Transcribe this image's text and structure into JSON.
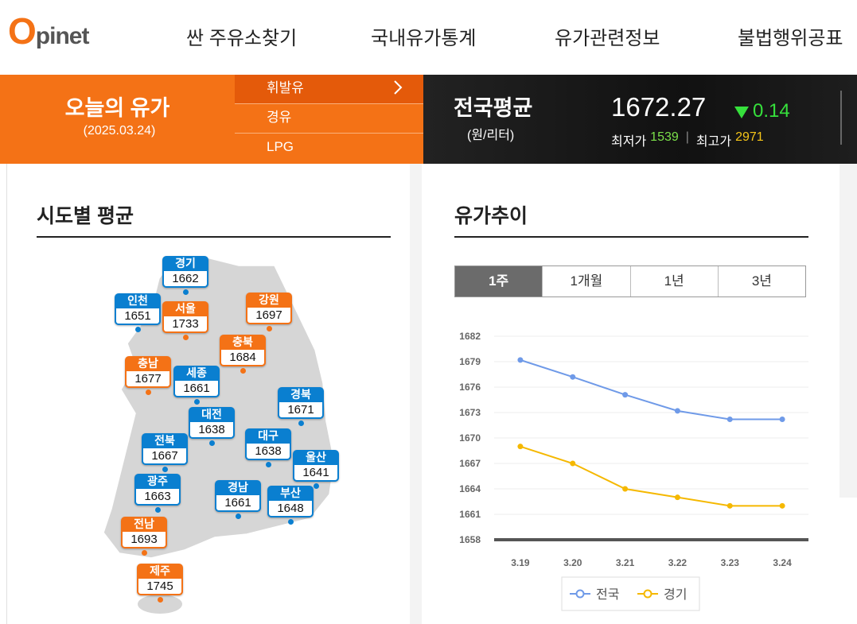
{
  "header": {
    "logo": "Opinet",
    "nav": [
      "싼 주유소찾기",
      "국내유가통계",
      "유가관련정보",
      "불법행위공표"
    ]
  },
  "today": {
    "title": "오늘의 유가",
    "date": "(2025.03.24)",
    "fuel_tabs": [
      "휘발유",
      "경유",
      "LPG"
    ]
  },
  "national": {
    "title": "전국평균",
    "unit": "(원/리터)",
    "price": "1672.27",
    "change": "0.14",
    "min_label": "최저가",
    "min": "1539",
    "max_label": "최고가",
    "max": "2971"
  },
  "regions_section": {
    "title": "시도별 평균",
    "regions": [
      {
        "name": "경기",
        "value": "1662",
        "color": "#0a7fd0"
      },
      {
        "name": "인천",
        "value": "1651",
        "color": "#0a7fd0"
      },
      {
        "name": "서울",
        "value": "1733",
        "color": "#f47216"
      },
      {
        "name": "강원",
        "value": "1697",
        "color": "#f47216"
      },
      {
        "name": "충북",
        "value": "1684",
        "color": "#f47216"
      },
      {
        "name": "충남",
        "value": "1677",
        "color": "#f47216"
      },
      {
        "name": "세종",
        "value": "1661",
        "color": "#0a7fd0"
      },
      {
        "name": "경북",
        "value": "1671",
        "color": "#0a7fd0"
      },
      {
        "name": "대전",
        "value": "1638",
        "color": "#0a7fd0"
      },
      {
        "name": "대구",
        "value": "1638",
        "color": "#0a7fd0"
      },
      {
        "name": "전북",
        "value": "1667",
        "color": "#0a7fd0"
      },
      {
        "name": "울산",
        "value": "1641",
        "color": "#0a7fd0"
      },
      {
        "name": "광주",
        "value": "1663",
        "color": "#0a7fd0"
      },
      {
        "name": "경남",
        "value": "1661",
        "color": "#0a7fd0"
      },
      {
        "name": "부산",
        "value": "1648",
        "color": "#0a7fd0"
      },
      {
        "name": "전남",
        "value": "1693",
        "color": "#f47216"
      },
      {
        "name": "제주",
        "value": "1745",
        "color": "#f47216"
      }
    ]
  },
  "trend_section": {
    "title": "유가추이",
    "periods": [
      "1주",
      "1개월",
      "1년",
      "3년"
    ]
  },
  "chart_data": {
    "type": "line",
    "categories": [
      "3.19",
      "3.20",
      "3.21",
      "3.22",
      "3.23",
      "3.24"
    ],
    "series": [
      {
        "name": "전국",
        "color": "#6f9ae8",
        "values": [
          1679.2,
          1677.2,
          1675.1,
          1673.2,
          1672.2,
          1672.2
        ]
      },
      {
        "name": "경기",
        "color": "#f5b800",
        "values": [
          1669,
          1667,
          1664,
          1663,
          1662,
          1662
        ]
      }
    ],
    "ylim": [
      1658,
      1682
    ],
    "yticks": [
      1658,
      1661,
      1664,
      1667,
      1670,
      1673,
      1676,
      1679,
      1682
    ],
    "grid": true
  }
}
